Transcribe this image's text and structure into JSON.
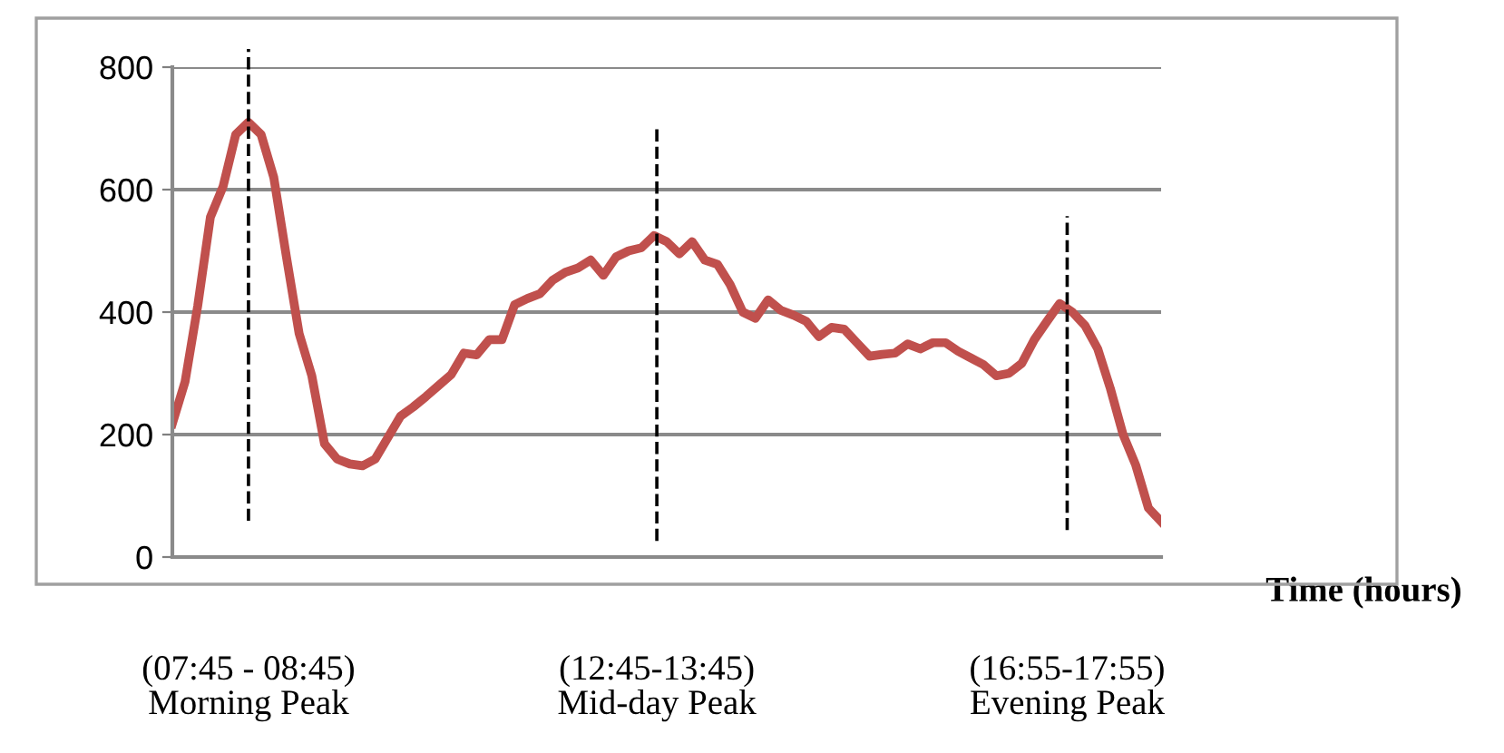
{
  "chart_data": {
    "type": "line",
    "xlabel": "Time (hours)",
    "categories": [
      null,
      null,
      null,
      null,
      null,
      null,
      null,
      null,
      null,
      null,
      null,
      null,
      null,
      null,
      null,
      null,
      null,
      null,
      null,
      null,
      null,
      null,
      null,
      null,
      null,
      null,
      null,
      null,
      null,
      null,
      null,
      null,
      null,
      null,
      null,
      null,
      null,
      null,
      null,
      null,
      null,
      null,
      null,
      null,
      null,
      null,
      null,
      null,
      null,
      null,
      null,
      null,
      null,
      null,
      null,
      null,
      null,
      null,
      null,
      null,
      null,
      null,
      null,
      null,
      null,
      null,
      null,
      null,
      null,
      null,
      null,
      null,
      null,
      null,
      null,
      null,
      null,
      null,
      null
    ],
    "series": [
      {
        "color": "#c0504d",
        "values": [
          218,
          286,
          410,
          555,
          605,
          690,
          710,
          690,
          620,
          490,
          365,
          296,
          185,
          160,
          152,
          149,
          160,
          195,
          230,
          245,
          262,
          280,
          298,
          333,
          330,
          355,
          355,
          412,
          422,
          430,
          452,
          465,
          472,
          485,
          460,
          490,
          500,
          505,
          525,
          515,
          495,
          515,
          485,
          478,
          445,
          400,
          390,
          420,
          403,
          395,
          385,
          360,
          375,
          372,
          350,
          328,
          331,
          333,
          348,
          340,
          350,
          350,
          336,
          325,
          314,
          296,
          300,
          316,
          355,
          385,
          414,
          400,
          378,
          340,
          275,
          200,
          150,
          80,
          58
        ]
      }
    ],
    "ylim": [
      0,
      800
    ],
    "yticks": [
      0,
      200,
      400,
      600,
      800
    ],
    "grid": "y",
    "tick_labels": "y",
    "marker": "none",
    "line_style": "solid",
    "annotations": [
      "(07:45 - 08:45)\nMorning Peak",
      "(12:45-13:45)\nMid-day Peak",
      "(16:55-17:55)\nEvening Peak"
    ]
  }
}
